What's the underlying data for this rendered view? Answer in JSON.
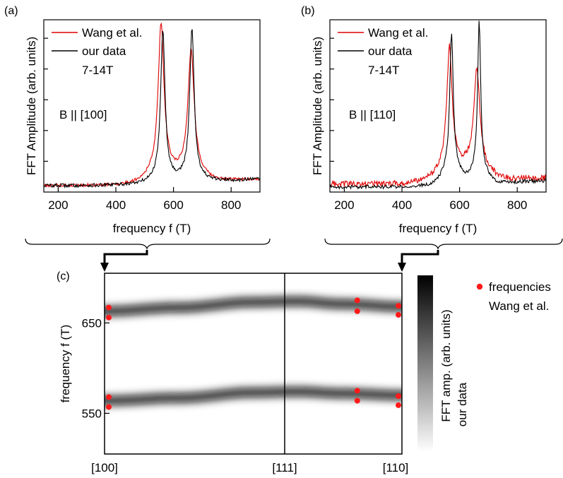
{
  "panel_labels": [
    "(a)",
    "(b)",
    "(c)"
  ],
  "colors": {
    "wang": "#e00000",
    "ours": "#000000",
    "dot": "#ff1a1a"
  },
  "chart_data": [
    {
      "type": "line",
      "panel": "(a)",
      "xlabel": "frequency f (T)",
      "ylabel": "FFT Amplitude (arb. units)",
      "xlim": [
        150,
        900
      ],
      "xticks": [
        200,
        400,
        600,
        800
      ],
      "ylim": [
        0,
        1
      ],
      "annotation": "B || [100]",
      "legend": {
        "position": "top-left",
        "entries": [
          "Wang et al.",
          "our data"
        ],
        "note": "7-14T"
      },
      "series": [
        {
          "name": "Wang et al.",
          "color": "#e00000",
          "baseline": 0.02,
          "noise": 0.01,
          "peaks": [
            {
              "f": 557,
              "h": 0.98,
              "w": 12,
              "bg_h": 0.07,
              "bg_w": 65
            },
            {
              "f": 661,
              "h": 0.8,
              "w": 13,
              "bg_h": 0.06,
              "bg_w": 55
            }
          ]
        },
        {
          "name": "our data",
          "color": "#000000",
          "baseline": 0.02,
          "noise": 0.012,
          "peaks": [
            {
              "f": 563,
              "h": 0.97,
              "w": 9,
              "bg_h": 0.04,
              "bg_w": 50
            },
            {
              "f": 664,
              "h": 0.98,
              "w": 9,
              "bg_h": 0.04,
              "bg_w": 45
            }
          ]
        }
      ]
    },
    {
      "type": "line",
      "panel": "(b)",
      "xlabel": "frequency f (T)",
      "ylabel": "FFT Amplitude (arb. units)",
      "xlim": [
        150,
        900
      ],
      "xticks": [
        200,
        400,
        600,
        800
      ],
      "ylim": [
        0,
        1
      ],
      "annotation": "B || [110]",
      "legend": {
        "position": "top-left",
        "entries": [
          "Wang et al.",
          "our data"
        ],
        "note": "7-14T"
      },
      "series": [
        {
          "name": "Wang et al.",
          "color": "#e00000",
          "baseline": 0.03,
          "noise": 0.02,
          "peaks": [
            {
              "f": 565,
              "h": 0.78,
              "w": 11,
              "bg_h": 0.1,
              "bg_w": 60
            },
            {
              "f": 660,
              "h": 0.63,
              "w": 12,
              "bg_h": 0.1,
              "bg_w": 55
            }
          ]
        },
        {
          "name": "our data",
          "color": "#000000",
          "baseline": 0.01,
          "noise": 0.012,
          "peaks": [
            {
              "f": 572,
              "h": 0.88,
              "w": 7,
              "bg_h": 0.12,
              "bg_w": 40
            },
            {
              "f": 668,
              "h": 0.98,
              "w": 6,
              "bg_h": 0.1,
              "bg_w": 35
            }
          ]
        }
      ]
    },
    {
      "type": "heatmap",
      "panel": "(c)",
      "ylabel": "frequency f (T)",
      "ylim": [
        505,
        705
      ],
      "yticks": [
        550,
        650
      ],
      "x_categories": [
        "[100]",
        "[111]",
        "[110]"
      ],
      "colorbar_label": [
        "FFT amp. (arb. units)",
        "our data"
      ],
      "legend": {
        "position": "right",
        "entry": "frequencies\nWang et al."
      },
      "bands": [
        {
          "name": "upper",
          "x": [
            0,
            0.25,
            0.5,
            0.65,
            0.8,
            1.0
          ],
          "f": [
            663,
            667,
            673,
            674,
            671,
            668
          ]
        },
        {
          "name": "lower",
          "x": [
            0,
            0.25,
            0.5,
            0.65,
            0.8,
            1.0
          ],
          "f": [
            564,
            567,
            573,
            574,
            572,
            570
          ]
        }
      ],
      "wang_points": [
        {
          "x": 0,
          "f": 667
        },
        {
          "x": 0,
          "f": 656
        },
        {
          "x": 0,
          "f": 568
        },
        {
          "x": 0,
          "f": 557
        },
        {
          "x": 0.85,
          "f": 675
        },
        {
          "x": 0.85,
          "f": 663
        },
        {
          "x": 0.85,
          "f": 575
        },
        {
          "x": 0.85,
          "f": 564
        },
        {
          "x": 1.0,
          "f": 669
        },
        {
          "x": 1.0,
          "f": 659
        },
        {
          "x": 1.0,
          "f": 569
        },
        {
          "x": 1.0,
          "f": 559
        }
      ]
    }
  ]
}
